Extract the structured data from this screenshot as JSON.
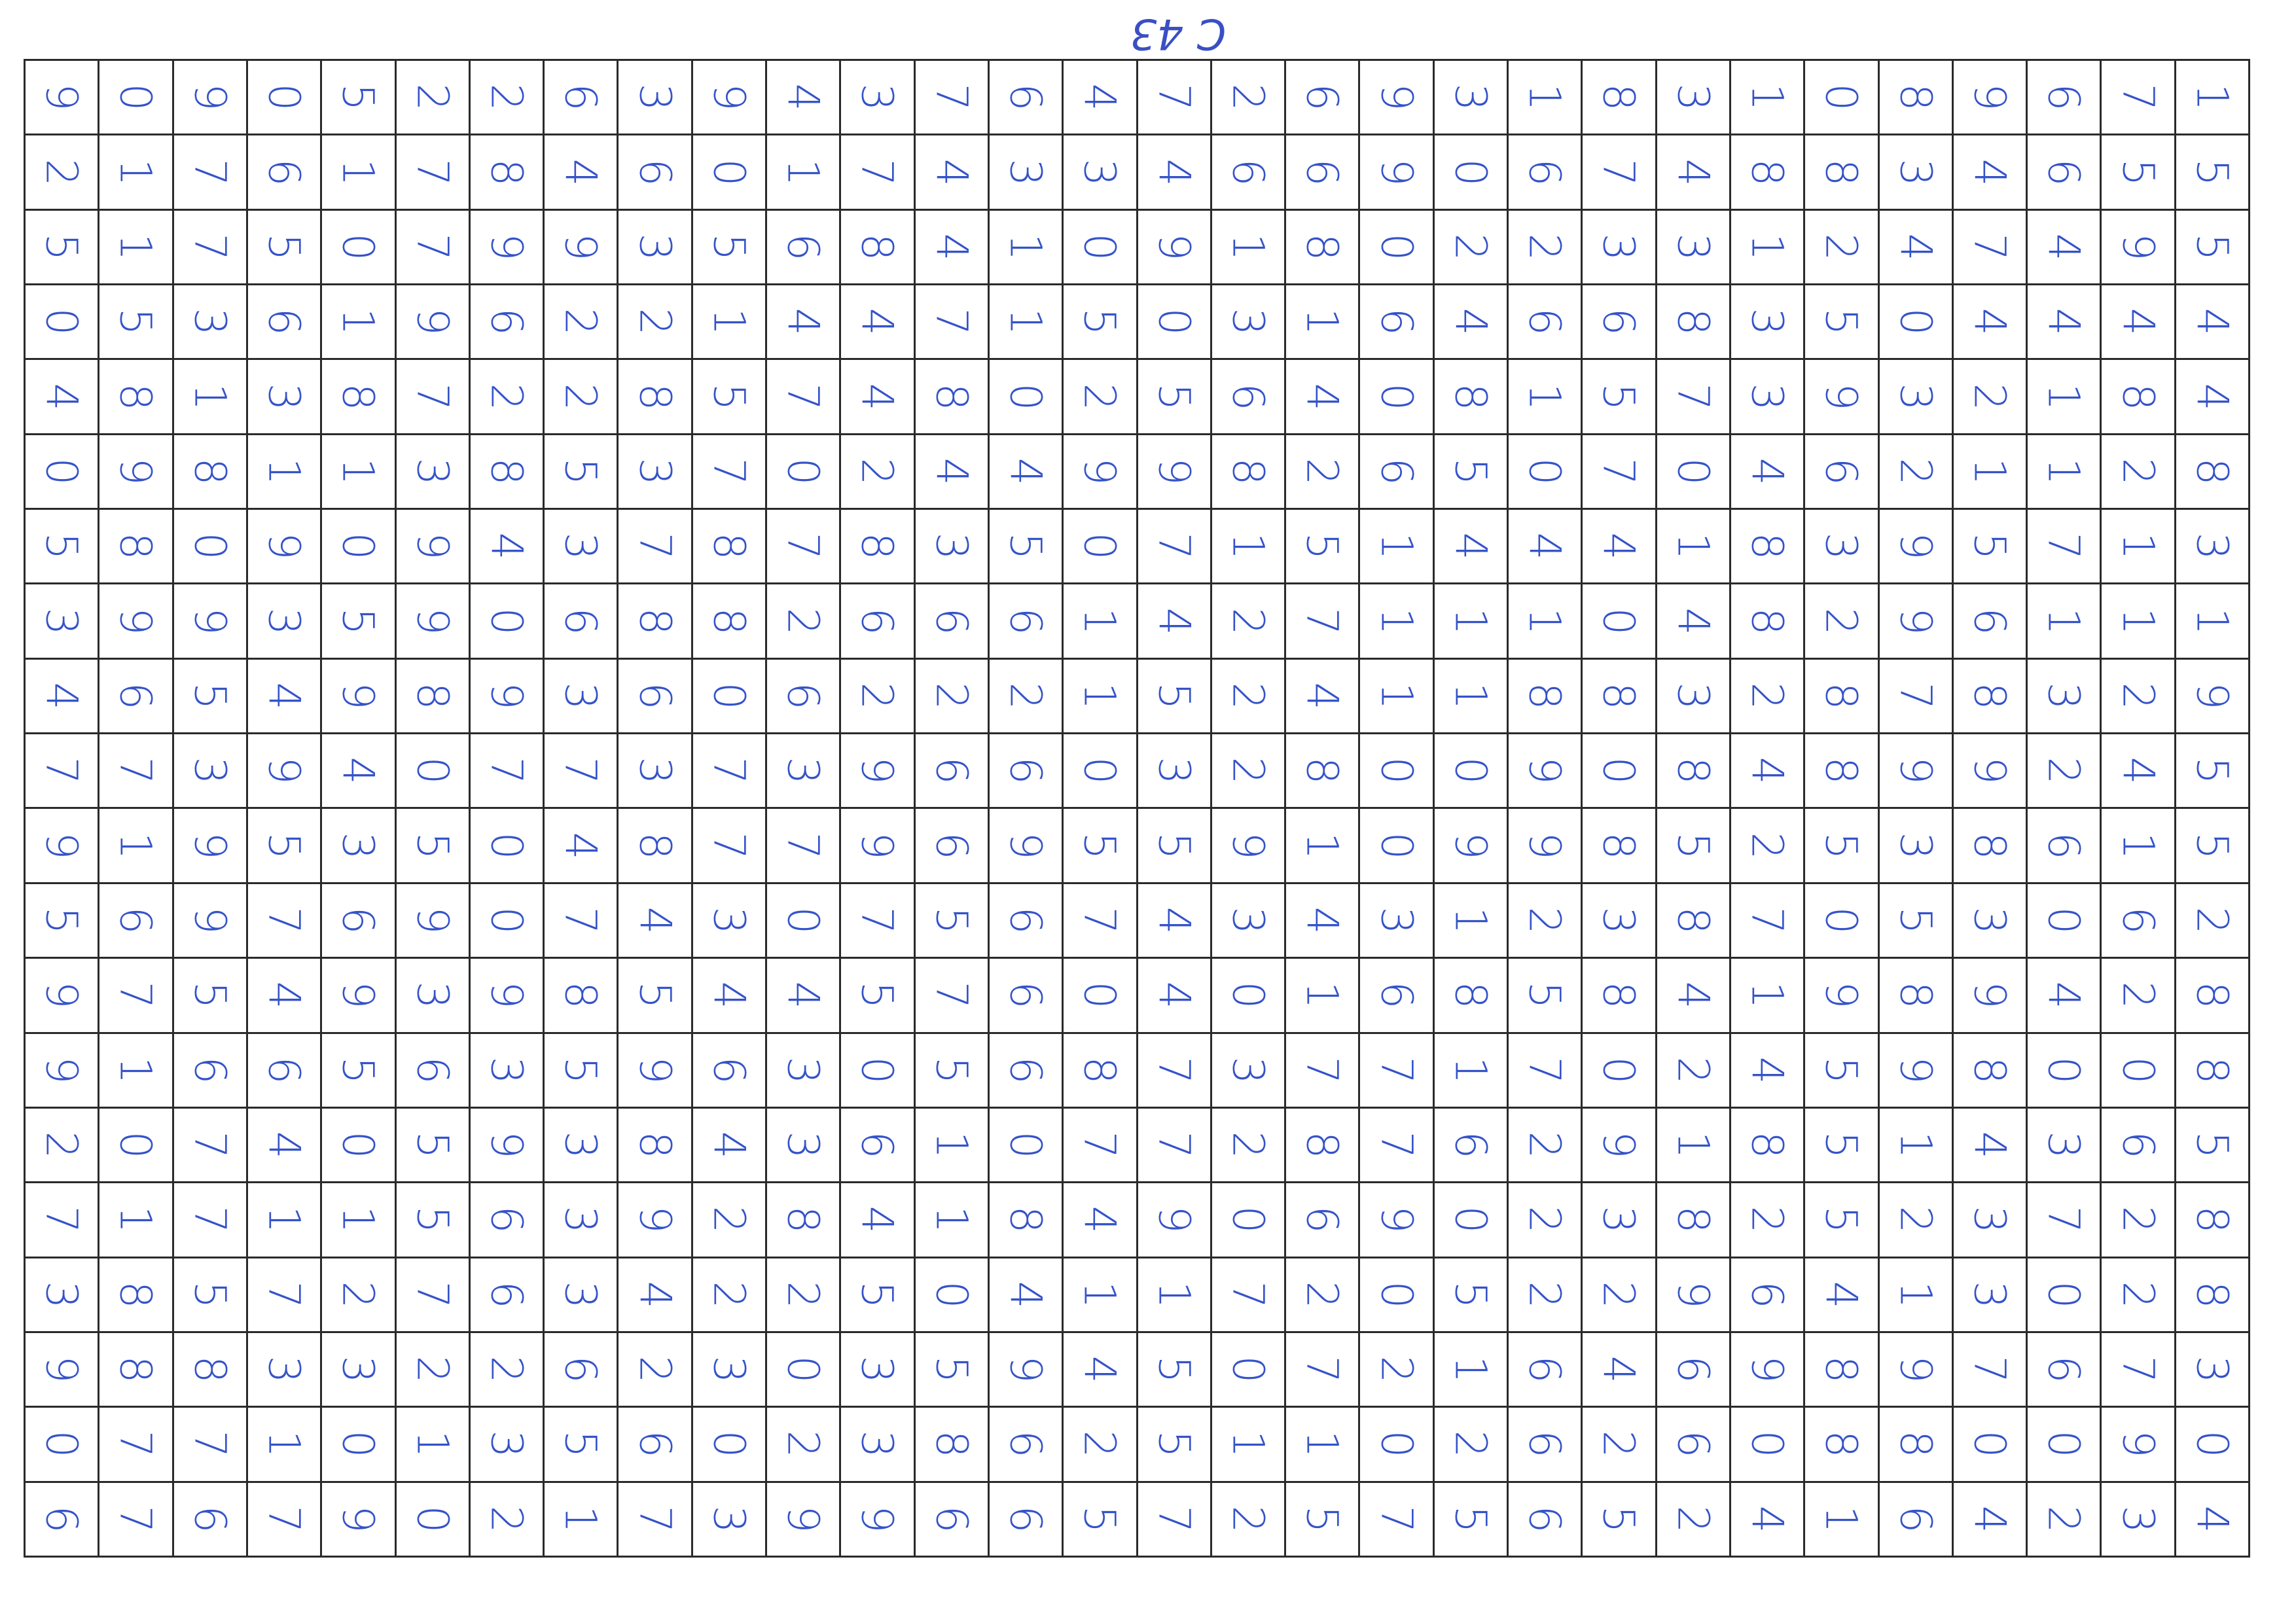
{
  "header": {
    "page_code": "C 43 #"
  },
  "grid": {
    "rows": [
      [
        "9",
        "0",
        "9",
        "0",
        "5",
        "2",
        "2",
        "6",
        "3",
        "9",
        "4",
        "3",
        "7",
        "6",
        "4",
        "7",
        "2",
        "6",
        "9",
        "3",
        "1",
        "8",
        "3",
        "1",
        "0",
        "8",
        "9",
        "6",
        "7",
        "1"
      ],
      [
        "2",
        "1",
        "7",
        "6",
        "1",
        "7",
        "8",
        "4",
        "6",
        "0",
        "1",
        "7",
        "4",
        "3",
        "3",
        "4",
        "6",
        "6",
        "9",
        "0",
        "6",
        "7",
        "4",
        "8",
        "8",
        "3",
        "4",
        "6",
        "5",
        "5"
      ],
      [
        "5",
        "1",
        "7",
        "5",
        "0",
        "7",
        "9",
        "9",
        "3",
        "5",
        "6",
        "8",
        "4",
        "1",
        "0",
        "9",
        "1",
        "8",
        "0",
        "2",
        "2",
        "3",
        "3",
        "1",
        "2",
        "4",
        "7",
        "4",
        "9",
        "5"
      ],
      [
        "0",
        "5",
        "3",
        "6",
        "1",
        "9",
        "6",
        "2",
        "2",
        "1",
        "4",
        "4",
        "7",
        "1",
        "5",
        "0",
        "3",
        "1",
        "6",
        "4",
        "6",
        "6",
        "8",
        "3",
        "5",
        "0",
        "4",
        "4",
        "4",
        "4"
      ],
      [
        "4",
        "8",
        "1",
        "3",
        "8",
        "7",
        "2",
        "2",
        "8",
        "5",
        "7",
        "4",
        "8",
        "0",
        "2",
        "5",
        "6",
        "4",
        "0",
        "8",
        "1",
        "5",
        "7",
        "3",
        "9",
        "3",
        "2",
        "1",
        "8",
        "4"
      ],
      [
        "0",
        "9",
        "8",
        "1",
        "1",
        "3",
        "8",
        "5",
        "3",
        "7",
        "0",
        "2",
        "4",
        "4",
        "9",
        "9",
        "8",
        "2",
        "6",
        "5",
        "0",
        "7",
        "0",
        "4",
        "6",
        "2",
        "1",
        "1",
        "2",
        "8"
      ],
      [
        "5",
        "8",
        "0",
        "9",
        "0",
        "9",
        "4",
        "3",
        "7",
        "8",
        "7",
        "8",
        "3",
        "5",
        "0",
        "7",
        "1",
        "5",
        "1",
        "4",
        "4",
        "4",
        "1",
        "8",
        "3",
        "9",
        "5",
        "7",
        "1",
        "3"
      ],
      [
        "3",
        "9",
        "9",
        "3",
        "5",
        "9",
        "0",
        "6",
        "8",
        "8",
        "2",
        "6",
        "6",
        "6",
        "1",
        "4",
        "2",
        "7",
        "1",
        "1",
        "1",
        "0",
        "4",
        "8",
        "2",
        "9",
        "6",
        "1",
        "1",
        "1"
      ],
      [
        "4",
        "6",
        "5",
        "4",
        "9",
        "8",
        "9",
        "3",
        "6",
        "0",
        "6",
        "2",
        "2",
        "2",
        "1",
        "5",
        "2",
        "4",
        "1",
        "1",
        "8",
        "8",
        "3",
        "2",
        "8",
        "7",
        "8",
        "3",
        "2",
        "9"
      ],
      [
        "7",
        "7",
        "3",
        "9",
        "4",
        "0",
        "7",
        "7",
        "3",
        "7",
        "3",
        "9",
        "6",
        "6",
        "0",
        "3",
        "2",
        "8",
        "0",
        "0",
        "9",
        "0",
        "8",
        "4",
        "8",
        "9",
        "9",
        "2",
        "4",
        "5"
      ],
      [
        "9",
        "1",
        "9",
        "5",
        "3",
        "5",
        "0",
        "4",
        "8",
        "7",
        "7",
        "9",
        "6",
        "9",
        "5",
        "5",
        "9",
        "1",
        "0",
        "9",
        "9",
        "8",
        "5",
        "2",
        "5",
        "3",
        "8",
        "6",
        "1",
        "5"
      ],
      [
        "5",
        "6",
        "9",
        "7",
        "6",
        "9",
        "0",
        "7",
        "4",
        "3",
        "0",
        "7",
        "5",
        "6",
        "7",
        "4",
        "3",
        "4",
        "3",
        "1",
        "2",
        "3",
        "8",
        "7",
        "0",
        "5",
        "3",
        "0",
        "6",
        "2"
      ],
      [
        "9",
        "7",
        "5",
        "4",
        "9",
        "3",
        "9",
        "8",
        "5",
        "4",
        "4",
        "5",
        "7",
        "6",
        "0",
        "4",
        "0",
        "1",
        "6",
        "8",
        "5",
        "8",
        "4",
        "1",
        "9",
        "8",
        "9",
        "4",
        "2",
        "8"
      ],
      [
        "9",
        "1",
        "6",
        "6",
        "5",
        "6",
        "3",
        "5",
        "9",
        "6",
        "3",
        "0",
        "5",
        "6",
        "8",
        "7",
        "3",
        "7",
        "7",
        "1",
        "7",
        "0",
        "2",
        "4",
        "5",
        "9",
        "8",
        "0",
        "0",
        "8"
      ],
      [
        "2",
        "0",
        "7",
        "4",
        "0",
        "5",
        "9",
        "3",
        "8",
        "4",
        "3",
        "6",
        "1",
        "0",
        "7",
        "7",
        "2",
        "8",
        "7",
        "6",
        "2",
        "9",
        "1",
        "8",
        "5",
        "1",
        "4",
        "3",
        "6",
        "5"
      ],
      [
        "7",
        "1",
        "7",
        "1",
        "1",
        "5",
        "6",
        "3",
        "9",
        "2",
        "8",
        "4",
        "1",
        "8",
        "4",
        "9",
        "0",
        "6",
        "9",
        "0",
        "2",
        "3",
        "8",
        "2",
        "5",
        "2",
        "3",
        "7",
        "2",
        "8"
      ],
      [
        "3",
        "8",
        "5",
        "7",
        "2",
        "7",
        "6",
        "3",
        "4",
        "2",
        "2",
        "5",
        "0",
        "4",
        "1",
        "1",
        "7",
        "2",
        "0",
        "5",
        "2",
        "2",
        "9",
        "6",
        "4",
        "1",
        "3",
        "0",
        "2",
        "8"
      ],
      [
        "9",
        "8",
        "8",
        "3",
        "3",
        "2",
        "2",
        "6",
        "2",
        "3",
        "0",
        "3",
        "5",
        "9",
        "4",
        "5",
        "0",
        "7",
        "2",
        "1",
        "6",
        "4",
        "6",
        "9",
        "8",
        "9",
        "7",
        "6",
        "7",
        "3"
      ],
      [
        "0",
        "7",
        "7",
        "1",
        "0",
        "1",
        "3",
        "5",
        "6",
        "0",
        "2",
        "3",
        "8",
        "6",
        "2",
        "5",
        "1",
        "1",
        "0",
        "2",
        "6",
        "2",
        "6",
        "0",
        "8",
        "8",
        "0",
        "0",
        "9",
        "0"
      ],
      [
        "6",
        "7",
        "6",
        "7",
        "9",
        "0",
        "2",
        "1",
        "7",
        "3",
        "9",
        "9",
        "6",
        "6",
        "5",
        "7",
        "2",
        "5",
        "7",
        "5",
        "6",
        "5",
        "2",
        "4",
        "1",
        "6",
        "4",
        "2",
        "3",
        "4"
      ]
    ]
  }
}
